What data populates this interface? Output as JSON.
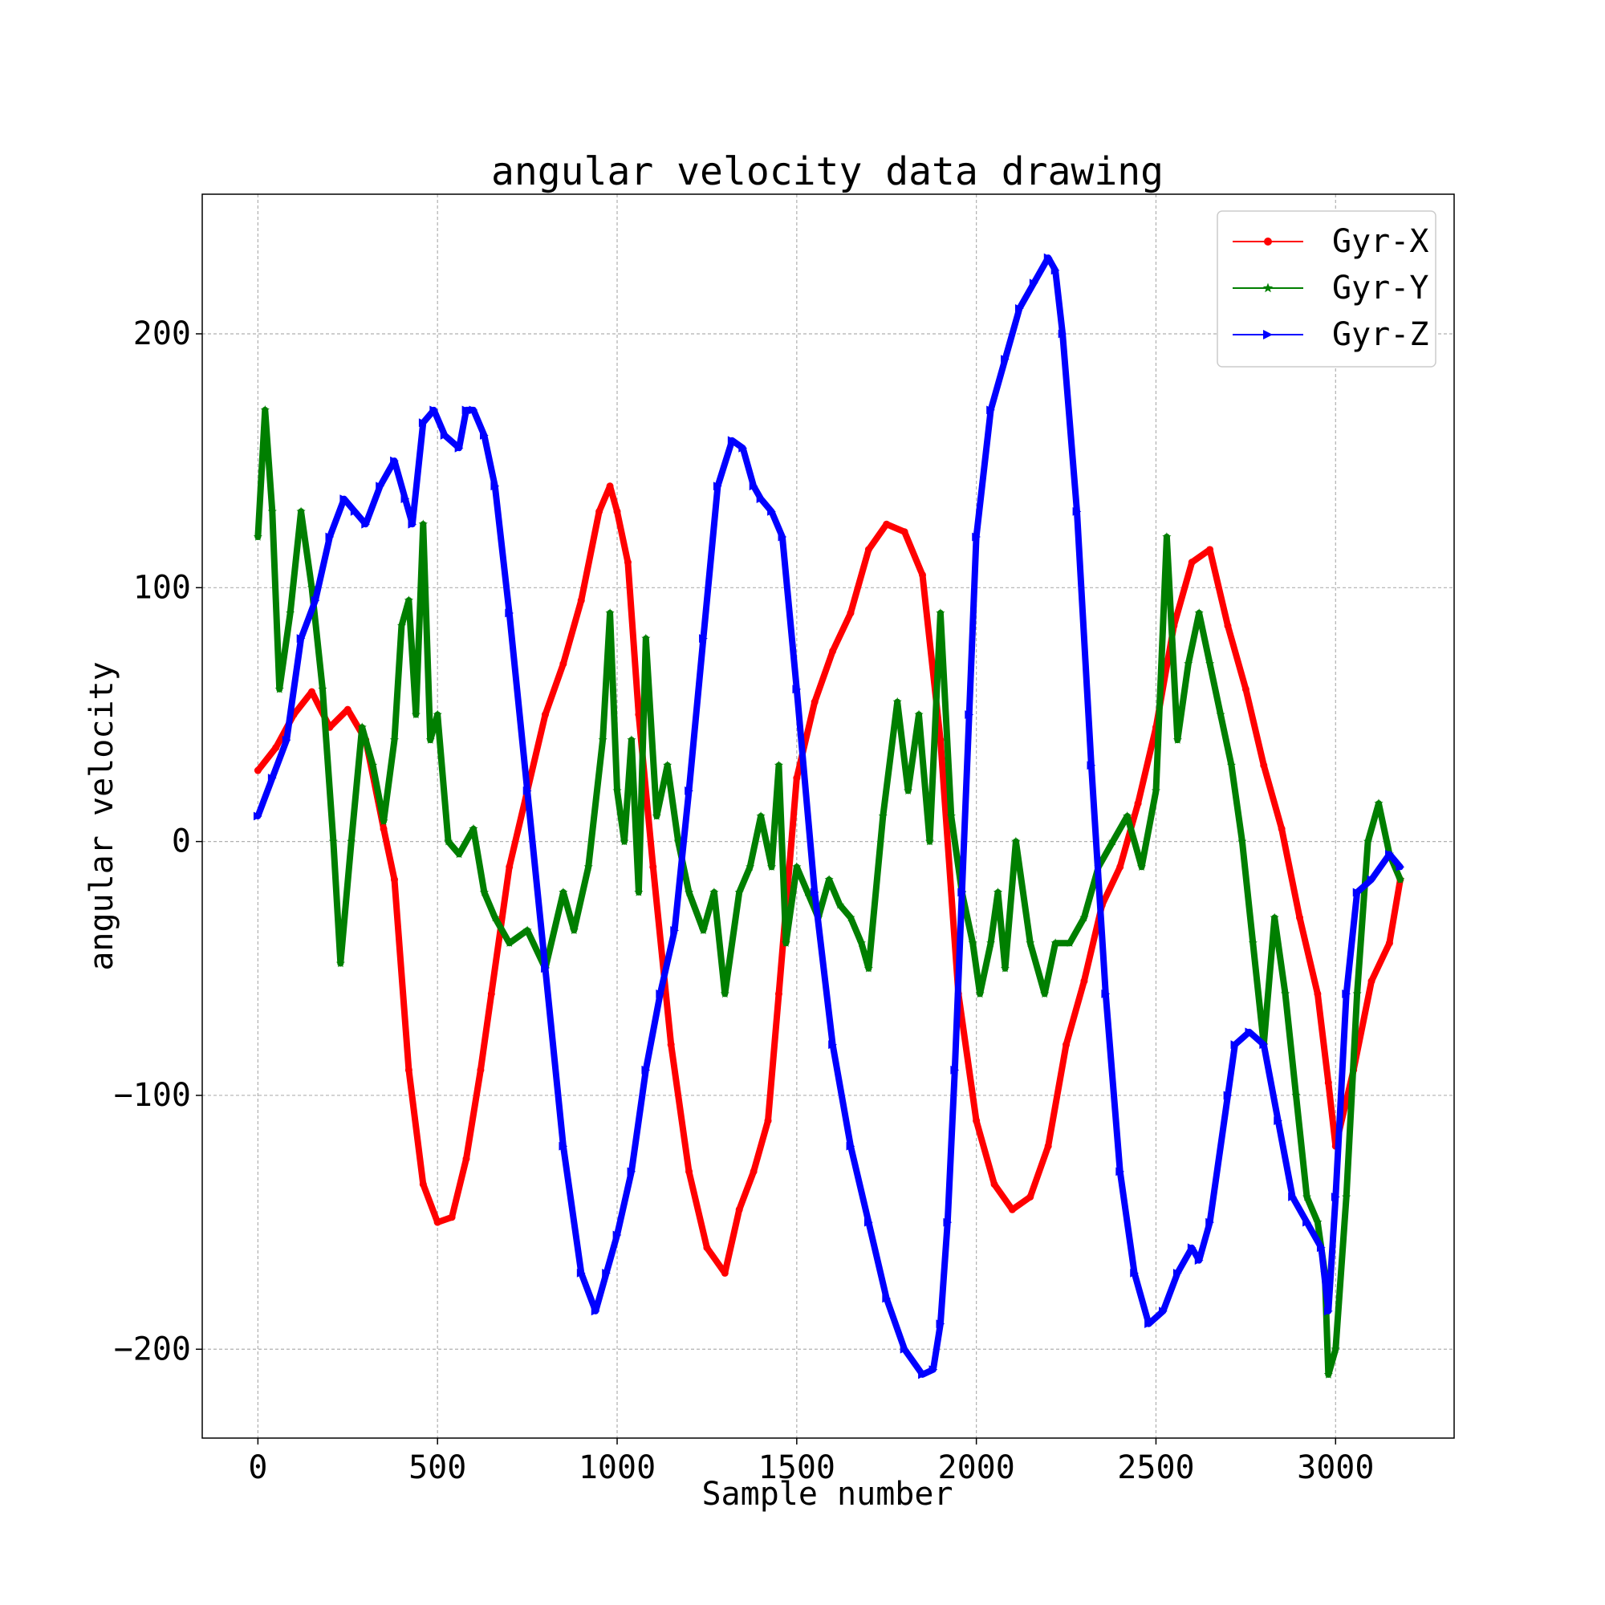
{
  "chart_data": {
    "type": "line",
    "title": "angular velocity data drawing",
    "xlabel": "Sample number",
    "ylabel": "angular velocity",
    "xlim": [
      -155,
      3330
    ],
    "ylim": [
      -235,
      255
    ],
    "xticks": [
      0,
      500,
      1000,
      1500,
      2000,
      2500,
      3000
    ],
    "yticks": [
      -200,
      -100,
      0,
      100,
      200
    ],
    "xtick_labels": [
      "0",
      "500",
      "1000",
      "1500",
      "2000",
      "2500",
      "3000"
    ],
    "ytick_labels": [
      "−200",
      "−100",
      "0",
      "100",
      "200"
    ],
    "grid": true,
    "legend_position": "top-right",
    "series": [
      {
        "name": "Gyr-X",
        "color": "#ff0000",
        "marker": "circle",
        "x": [
          0,
          50,
          100,
          150,
          200,
          250,
          300,
          350,
          380,
          420,
          460,
          500,
          540,
          580,
          620,
          650,
          700,
          750,
          800,
          850,
          900,
          950,
          980,
          1000,
          1030,
          1060,
          1100,
          1150,
          1200,
          1250,
          1300,
          1340,
          1380,
          1420,
          1450,
          1500,
          1550,
          1600,
          1650,
          1700,
          1750,
          1800,
          1850,
          1900,
          1950,
          2000,
          2050,
          2100,
          2150,
          2200,
          2250,
          2300,
          2350,
          2400,
          2450,
          2500,
          2550,
          2600,
          2650,
          2700,
          2750,
          2800,
          2850,
          2900,
          2950,
          2980,
          3000,
          3050,
          3100,
          3150,
          3180
        ],
        "y": [
          28,
          37,
          50,
          59,
          45,
          52,
          40,
          5,
          -15,
          -90,
          -135,
          -150,
          -148,
          -125,
          -90,
          -60,
          -10,
          20,
          50,
          70,
          95,
          130,
          140,
          130,
          110,
          50,
          -10,
          -80,
          -130,
          -160,
          -170,
          -145,
          -130,
          -110,
          -60,
          25,
          55,
          75,
          90,
          115,
          125,
          122,
          105,
          40,
          -60,
          -110,
          -135,
          -145,
          -140,
          -120,
          -80,
          -55,
          -25,
          -10,
          15,
          45,
          85,
          110,
          115,
          85,
          60,
          30,
          5,
          -30,
          -60,
          -95,
          -120,
          -90,
          -55,
          -40,
          -15
        ]
      },
      {
        "name": "Gyr-Y",
        "color": "#007f00",
        "marker": "star",
        "x": [
          0,
          20,
          40,
          60,
          90,
          120,
          150,
          180,
          210,
          230,
          260,
          290,
          320,
          350,
          380,
          400,
          420,
          440,
          460,
          480,
          500,
          530,
          560,
          600,
          630,
          660,
          700,
          750,
          800,
          850,
          880,
          920,
          960,
          980,
          1000,
          1020,
          1040,
          1060,
          1080,
          1110,
          1140,
          1170,
          1200,
          1240,
          1270,
          1300,
          1340,
          1370,
          1400,
          1430,
          1450,
          1470,
          1500,
          1530,
          1560,
          1590,
          1620,
          1650,
          1680,
          1700,
          1740,
          1780,
          1810,
          1840,
          1870,
          1900,
          1930,
          1960,
          1990,
          2010,
          2040,
          2060,
          2080,
          2110,
          2150,
          2190,
          2220,
          2260,
          2300,
          2340,
          2380,
          2420,
          2460,
          2500,
          2530,
          2560,
          2590,
          2620,
          2650,
          2680,
          2710,
          2740,
          2770,
          2800,
          2830,
          2860,
          2890,
          2920,
          2950,
          2970,
          2980,
          3000,
          3030,
          3060,
          3090,
          3120,
          3150,
          3180
        ],
        "y": [
          120,
          170,
          130,
          60,
          90,
          130,
          100,
          60,
          0,
          -48,
          0,
          45,
          30,
          8,
          40,
          85,
          95,
          50,
          125,
          40,
          50,
          0,
          -5,
          5,
          -20,
          -30,
          -40,
          -35,
          -50,
          -20,
          -35,
          -10,
          40,
          90,
          20,
          0,
          40,
          -20,
          80,
          10,
          30,
          0,
          -20,
          -35,
          -20,
          -60,
          -20,
          -10,
          10,
          -10,
          30,
          -40,
          -10,
          -20,
          -30,
          -15,
          -25,
          -30,
          -40,
          -50,
          10,
          55,
          20,
          50,
          0,
          90,
          10,
          -20,
          -40,
          -60,
          -40,
          -20,
          -50,
          0,
          -40,
          -60,
          -40,
          -40,
          -30,
          -10,
          0,
          10,
          -10,
          20,
          120,
          40,
          70,
          90,
          70,
          50,
          30,
          0,
          -40,
          -80,
          -30,
          -60,
          -100,
          -140,
          -150,
          -170,
          -210,
          -200,
          -140,
          -60,
          0,
          15,
          -5,
          -15
        ]
      },
      {
        "name": "Gyr-Z",
        "color": "#0000ff",
        "marker": "triangle-right",
        "x": [
          0,
          40,
          80,
          120,
          160,
          200,
          240,
          270,
          300,
          340,
          380,
          410,
          430,
          460,
          490,
          520,
          560,
          580,
          600,
          630,
          660,
          700,
          750,
          800,
          850,
          900,
          940,
          970,
          1000,
          1040,
          1080,
          1120,
          1160,
          1200,
          1240,
          1280,
          1320,
          1350,
          1380,
          1400,
          1430,
          1460,
          1500,
          1550,
          1600,
          1650,
          1700,
          1750,
          1800,
          1850,
          1880,
          1900,
          1920,
          1940,
          1960,
          1980,
          2000,
          2040,
          2080,
          2120,
          2160,
          2200,
          2220,
          2240,
          2280,
          2320,
          2360,
          2400,
          2440,
          2480,
          2520,
          2560,
          2600,
          2620,
          2650,
          2700,
          2720,
          2760,
          2800,
          2840,
          2880,
          2920,
          2960,
          2980,
          3000,
          3030,
          3060,
          3100,
          3150,
          3180
        ],
        "y": [
          10,
          25,
          40,
          80,
          95,
          120,
          135,
          130,
          125,
          140,
          150,
          135,
          125,
          165,
          170,
          160,
          155,
          170,
          170,
          160,
          140,
          90,
          20,
          -50,
          -120,
          -170,
          -185,
          -170,
          -155,
          -130,
          -90,
          -60,
          -35,
          20,
          80,
          140,
          158,
          155,
          140,
          135,
          130,
          120,
          60,
          -20,
          -80,
          -120,
          -150,
          -180,
          -200,
          -210,
          -208,
          -190,
          -150,
          -90,
          -20,
          50,
          120,
          170,
          190,
          210,
          220,
          230,
          225,
          200,
          130,
          30,
          -60,
          -130,
          -170,
          -190,
          -185,
          -170,
          -160,
          -165,
          -150,
          -100,
          -80,
          -75,
          -80,
          -110,
          -140,
          -150,
          -160,
          -185,
          -140,
          -60,
          -20,
          -15,
          -5,
          -10
        ]
      }
    ]
  }
}
